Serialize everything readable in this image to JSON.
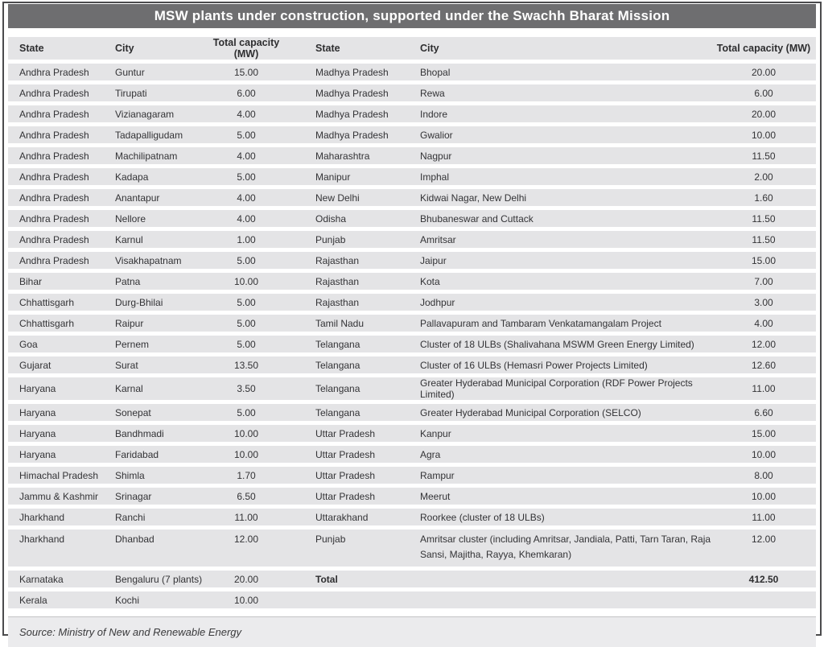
{
  "title": "MSW plants under construction, supported under the Swachh Bharat Mission",
  "colors": {
    "title_bar": "#6e6e70",
    "row_band": "#e4e4e6",
    "text": "#333336",
    "border": "#4b4b4d"
  },
  "table": {
    "headers": [
      "State",
      "City",
      "Total capacity (MW)",
      "State",
      "City",
      "Total capacity (MW)"
    ],
    "rows": [
      {
        "cells": [
          "Andhra Pradesh",
          "Guntur",
          "15.00",
          "Madhya Pradesh",
          "Bhopal",
          "20.00"
        ]
      },
      {
        "cells": [
          "Andhra Pradesh",
          "Tirupati",
          "6.00",
          "Madhya Pradesh",
          "Rewa",
          "6.00"
        ]
      },
      {
        "cells": [
          "Andhra Pradesh",
          "Vizianagaram",
          "4.00",
          "Madhya Pradesh",
          "Indore",
          "20.00"
        ]
      },
      {
        "cells": [
          "Andhra Pradesh",
          "Tadapalligudam",
          "5.00",
          "Madhya Pradesh",
          "Gwalior",
          "10.00"
        ]
      },
      {
        "cells": [
          "Andhra Pradesh",
          "Machilipatnam",
          "4.00",
          "Maharashtra",
          "Nagpur",
          "11.50"
        ]
      },
      {
        "cells": [
          "Andhra Pradesh",
          "Kadapa",
          "5.00",
          "Manipur",
          "Imphal",
          "2.00"
        ]
      },
      {
        "cells": [
          "Andhra Pradesh",
          "Anantapur",
          "4.00",
          "New Delhi",
          "Kidwai Nagar, New Delhi",
          "1.60"
        ]
      },
      {
        "cells": [
          "Andhra Pradesh",
          "Nellore",
          "4.00",
          "Odisha",
          "Bhubaneswar and Cuttack",
          "11.50"
        ]
      },
      {
        "cells": [
          "Andhra Pradesh",
          "Karnul",
          "1.00",
          "Punjab",
          "Amritsar",
          "11.50"
        ]
      },
      {
        "cells": [
          "Andhra Pradesh",
          "Visakhapatnam",
          "5.00",
          "Rajasthan",
          "Jaipur",
          "15.00"
        ]
      },
      {
        "cells": [
          "Bihar",
          "Patna",
          "10.00",
          "Rajasthan",
          "Kota",
          "7.00"
        ]
      },
      {
        "cells": [
          "Chhattisgarh",
          "Durg-Bhilai",
          "5.00",
          "Rajasthan",
          "Jodhpur",
          "3.00"
        ]
      },
      {
        "cells": [
          "Chhattisgarh",
          "Raipur",
          "5.00",
          "Tamil Nadu",
          "Pallavapuram and Tambaram Venkatamangalam Project",
          "4.00"
        ]
      },
      {
        "cells": [
          "Goa",
          "Pernem",
          "5.00",
          "Telangana",
          "Cluster of 18 ULBs (Shalivahana MSWM Green Energy Limited)",
          "12.00"
        ]
      },
      {
        "cells": [
          "Gujarat",
          "Surat",
          "13.50",
          "Telangana",
          "Cluster of 16 ULBs (Hemasri Power Projects Limited)",
          "12.60"
        ]
      },
      {
        "cells": [
          "Haryana",
          "Karnal",
          "3.50",
          "Telangana",
          "Greater Hyderabad Municipal Corporation (RDF Power Projects Limited)",
          "11.00"
        ]
      },
      {
        "cells": [
          "Haryana",
          "Sonepat",
          "5.00",
          "Telangana",
          "Greater Hyderabad Municipal Corporation (SELCO)",
          "6.60"
        ]
      },
      {
        "cells": [
          "Haryana",
          "Bandhmadi",
          "10.00",
          "Uttar Pradesh",
          "Kanpur",
          "15.00"
        ]
      },
      {
        "cells": [
          "Haryana",
          "Faridabad",
          "10.00",
          "Uttar Pradesh",
          "Agra",
          "10.00"
        ]
      },
      {
        "cells": [
          "Himachal Pradesh",
          "Shimla",
          "1.70",
          "Uttar Pradesh",
          "Rampur",
          "8.00"
        ]
      },
      {
        "cells": [
          "Jammu & Kashmir",
          "Srinagar",
          "6.50",
          "Uttar Pradesh",
          "Meerut",
          "10.00"
        ]
      },
      {
        "cells": [
          "Jharkhand",
          "Ranchi",
          "11.00",
          "Uttarakhand",
          "Roorkee (cluster of 18 ULBs)",
          "11.00"
        ]
      },
      {
        "cells": [
          "Jharkhand",
          "Dhanbad",
          "12.00",
          "Punjab",
          "Amritsar cluster (including Amritsar, Jandiala, Patti, Tarn Taran, Raja Sansi, Majitha, Rayya, Khemkaran)",
          "12.00"
        ],
        "tall": true
      },
      {
        "cells": [
          "Karnataka",
          "Bengaluru (7 plants)",
          "20.00",
          "Total",
          "",
          "412.50"
        ],
        "bold_right": true
      },
      {
        "cells": [
          "Kerala",
          "Kochi",
          "10.00",
          "",
          "",
          ""
        ]
      }
    ]
  },
  "source_note": "Source: Ministry of New and Renewable Energy"
}
